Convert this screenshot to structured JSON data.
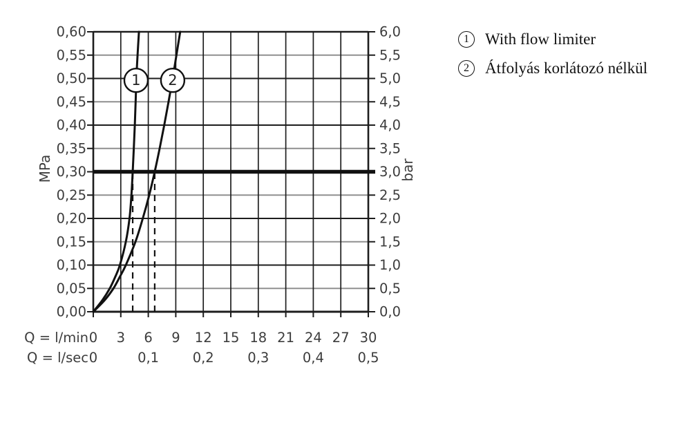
{
  "legend": {
    "items": [
      {
        "num": "1",
        "label": "With flow limiter"
      },
      {
        "num": "2",
        "label": "Átfolyás korlátozó nélkül"
      }
    ]
  },
  "chart_data": {
    "type": "line",
    "x_axis": {
      "caption_lmin": "Q = l/min",
      "caption_lsec": "Q = l/sec",
      "min": 0,
      "max": 30,
      "ticks": [
        {
          "q": 0,
          "lmin": "0",
          "lsec": "0"
        },
        {
          "q": 3,
          "lmin": "3"
        },
        {
          "q": 6,
          "lmin": "6",
          "lsec": "0,1"
        },
        {
          "q": 9,
          "lmin": "9"
        },
        {
          "q": 12,
          "lmin": "12",
          "lsec": "0,2"
        },
        {
          "q": 15,
          "lmin": "15"
        },
        {
          "q": 18,
          "lmin": "18",
          "lsec": "0,3"
        },
        {
          "q": 21,
          "lmin": "21"
        },
        {
          "q": 24,
          "lmin": "24",
          "lsec": "0,4"
        },
        {
          "q": 27,
          "lmin": "27"
        },
        {
          "q": 30,
          "lmin": "30",
          "lsec": "0,5"
        }
      ]
    },
    "y_axis_left": {
      "unit": "MPa",
      "min": 0,
      "max": 0.6
    },
    "y_axis_right": {
      "unit": "bar",
      "min": 0,
      "max": 6
    },
    "y_ticks": [
      {
        "p": 6.0,
        "mpa": "0,60",
        "bar": "6,0"
      },
      {
        "p": 5.5,
        "mpa": "0,55",
        "bar": "5,5"
      },
      {
        "p": 5.0,
        "mpa": "0,50",
        "bar": "5,0"
      },
      {
        "p": 4.5,
        "mpa": "0,45",
        "bar": "4,5"
      },
      {
        "p": 4.0,
        "mpa": "0,40",
        "bar": "4,0"
      },
      {
        "p": 3.5,
        "mpa": "0,35",
        "bar": "3,5"
      },
      {
        "p": 3.0,
        "mpa": "0,30",
        "bar": "3,0"
      },
      {
        "p": 2.5,
        "mpa": "0,25",
        "bar": "2,5"
      },
      {
        "p": 2.0,
        "mpa": "0,20",
        "bar": "2,0"
      },
      {
        "p": 1.5,
        "mpa": "0,15",
        "bar": "1,5"
      },
      {
        "p": 1.0,
        "mpa": "0,10",
        "bar": "1,0"
      },
      {
        "p": 0.5,
        "mpa": "0,05",
        "bar": "0,5"
      },
      {
        "p": 0.0,
        "mpa": "0,00",
        "bar": "0,0"
      }
    ],
    "reference_line": {
      "p": 3.0
    },
    "series": [
      {
        "num": "1",
        "label": "With flow limiter",
        "flow_at_3bar_lmin": 4.3,
        "points": [
          [
            0,
            0
          ],
          [
            0.25,
            1.0
          ],
          [
            0.5,
            1.8
          ],
          [
            0.75,
            2.4
          ],
          [
            1,
            2.9
          ],
          [
            1.5,
            3.55
          ],
          [
            2,
            3.95
          ],
          [
            2.5,
            4.16
          ],
          [
            3,
            4.3
          ],
          [
            3.5,
            4.42
          ],
          [
            4,
            4.53
          ],
          [
            4.5,
            4.62
          ],
          [
            5,
            4.7
          ],
          [
            5.5,
            4.83
          ],
          [
            6,
            4.98
          ]
        ],
        "callout": {
          "q": 4.67,
          "p": 4.96
        }
      },
      {
        "num": "2",
        "label": "Átfolyás korlátozó nélkül",
        "flow_at_3bar_lmin": 6.7,
        "points": [
          [
            0,
            0
          ],
          [
            0.25,
            1.25
          ],
          [
            0.5,
            2.2
          ],
          [
            0.75,
            2.9
          ],
          [
            1,
            3.55
          ],
          [
            1.5,
            4.6
          ],
          [
            2,
            5.4
          ],
          [
            2.5,
            6.1
          ],
          [
            3,
            6.7
          ],
          [
            3.5,
            7.24
          ],
          [
            4,
            7.74
          ],
          [
            4.5,
            8.21
          ],
          [
            5,
            8.66
          ],
          [
            5.5,
            9.07
          ],
          [
            6,
            9.48
          ]
        ],
        "callout": {
          "q": 8.66,
          "p": 4.96
        }
      }
    ],
    "dashed_guides": [
      {
        "q": 4.3,
        "p_top": 3.0
      },
      {
        "q": 6.7,
        "p_top": 3.0
      }
    ]
  },
  "colors": {
    "grid_black": "#1d1d1d",
    "grid_gray": "#8f8f8f",
    "axis_text": "#3c3c3c",
    "curve": "#111111",
    "legend_text": "#111111",
    "background": "#ffffff"
  }
}
